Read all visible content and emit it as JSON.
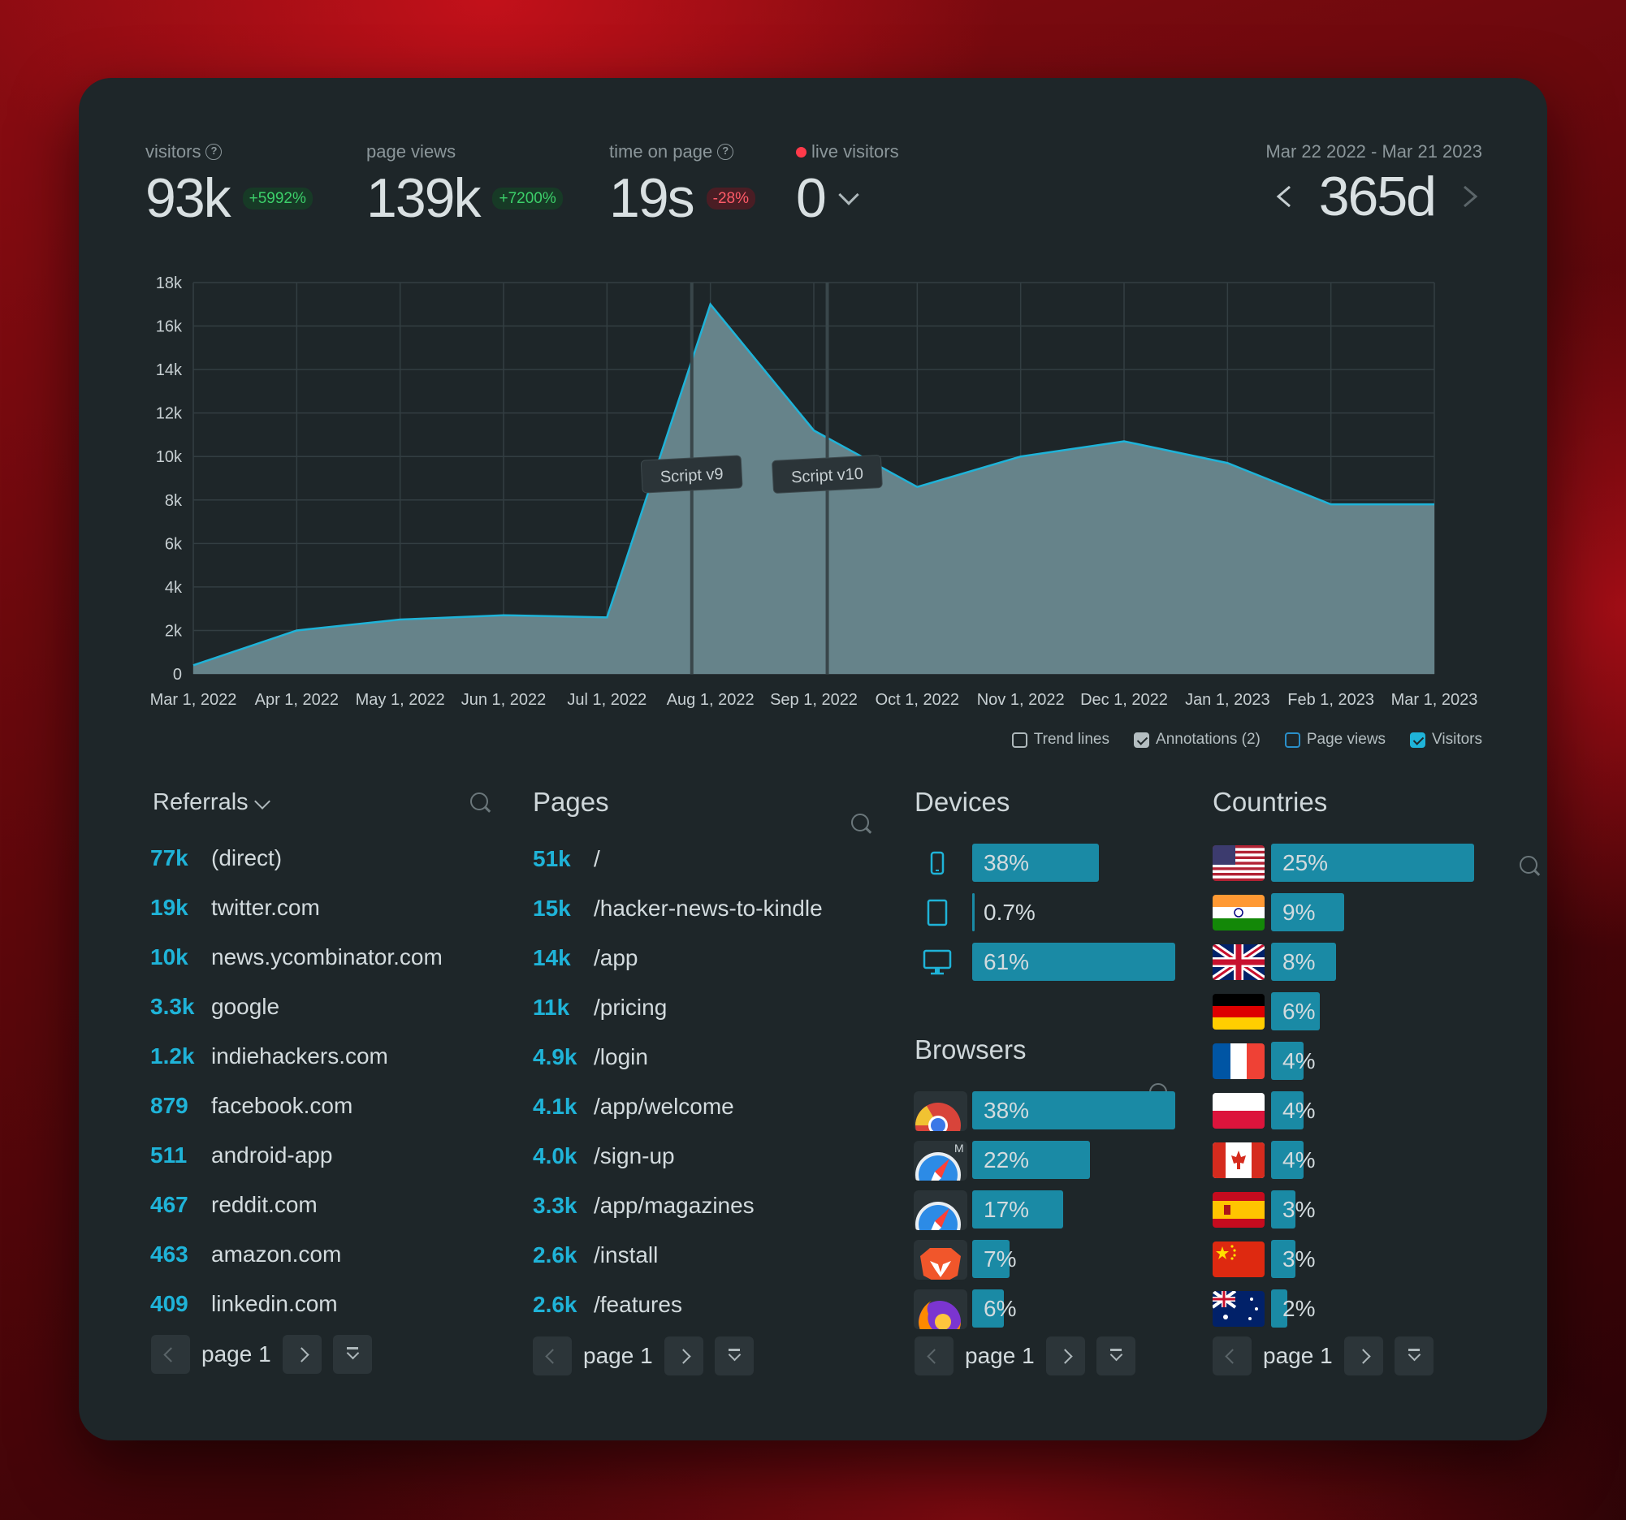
{
  "stats": {
    "visitors": {
      "label": "visitors",
      "value": "93k",
      "change": "+5992%"
    },
    "page_views": {
      "label": "page views",
      "value": "139k",
      "change": "+7200%"
    },
    "time_on_page": {
      "label": "time on page",
      "value": "19s",
      "change": "-28%"
    },
    "live": {
      "label": "live visitors",
      "value": "0"
    }
  },
  "range": {
    "dates": "Mar 22 2022 - Mar 21 2023",
    "value": "365d"
  },
  "chart_data": {
    "type": "area",
    "title": "",
    "xlabel": "",
    "ylabel": "",
    "x": [
      "Mar 1, 2022",
      "Apr 1, 2022",
      "May 1, 2022",
      "Jun 1, 2022",
      "Jul 1, 2022",
      "Aug 1, 2022",
      "Sep 1, 2022",
      "Oct 1, 2022",
      "Nov 1, 2022",
      "Dec 1, 2022",
      "Jan 1, 2023",
      "Feb 1, 2023",
      "Mar 1, 2023"
    ],
    "series": [
      {
        "name": "Visitors",
        "values": [
          400,
          2000,
          2500,
          2700,
          2600,
          17000,
          11200,
          8600,
          10000,
          10700,
          9700,
          7800,
          7800
        ]
      }
    ],
    "yticks": [
      "0",
      "2k",
      "4k",
      "6k",
      "8k",
      "10k",
      "12k",
      "14k",
      "16k",
      "18k"
    ],
    "ylim": [
      0,
      18000
    ],
    "annotations": [
      {
        "label": "Script v9",
        "x_index": 4.82
      },
      {
        "label": "Script v10",
        "x_index": 6.13
      }
    ],
    "grid": true
  },
  "legend": {
    "trend": "Trend lines",
    "annotations": "Annotations (2)",
    "page_views": "Page views",
    "visitors": "Visitors"
  },
  "referrals": {
    "title": "Referrals",
    "items": [
      {
        "num": "77k",
        "label": "(direct)"
      },
      {
        "num": "19k",
        "label": "twitter.com"
      },
      {
        "num": "10k",
        "label": "news.ycombinator.com"
      },
      {
        "num": "3.3k",
        "label": "google"
      },
      {
        "num": "1.2k",
        "label": "indiehackers.com"
      },
      {
        "num": "879",
        "label": "facebook.com"
      },
      {
        "num": "511",
        "label": "android-app"
      },
      {
        "num": "467",
        "label": "reddit.com"
      },
      {
        "num": "463",
        "label": "amazon.com"
      },
      {
        "num": "409",
        "label": "linkedin.com"
      }
    ],
    "page": "page 1"
  },
  "pages": {
    "title": "Pages",
    "items": [
      {
        "num": "51k",
        "label": "/"
      },
      {
        "num": "15k",
        "label": "/hacker-news-to-kindle"
      },
      {
        "num": "14k",
        "label": "/app"
      },
      {
        "num": "11k",
        "label": "/pricing"
      },
      {
        "num": "4.9k",
        "label": "/login"
      },
      {
        "num": "4.1k",
        "label": "/app/welcome"
      },
      {
        "num": "4.0k",
        "label": "/sign-up"
      },
      {
        "num": "3.3k",
        "label": "/app/magazines"
      },
      {
        "num": "2.6k",
        "label": "/install"
      },
      {
        "num": "2.6k",
        "label": "/features"
      }
    ],
    "page": "page 1"
  },
  "devices": {
    "title": "Devices",
    "items": [
      {
        "icon": "mobile-icon",
        "pct": "38%",
        "value": 38
      },
      {
        "icon": "tablet-icon",
        "pct": "0.7%",
        "value": 0.7
      },
      {
        "icon": "desktop-icon",
        "pct": "61%",
        "value": 61
      }
    ]
  },
  "browsers": {
    "title": "Browsers",
    "items": [
      {
        "icon": "chrome-icon",
        "pct": "38%",
        "value": 38
      },
      {
        "icon": "safari-mobile-icon",
        "pct": "22%",
        "value": 22
      },
      {
        "icon": "safari-icon",
        "pct": "17%",
        "value": 17
      },
      {
        "icon": "brave-icon",
        "pct": "7%",
        "value": 7
      },
      {
        "icon": "firefox-icon",
        "pct": "6%",
        "value": 6
      }
    ],
    "page": "page 1"
  },
  "countries": {
    "title": "Countries",
    "items": [
      {
        "flag": "us-flag-icon",
        "pct": "25%",
        "value": 25
      },
      {
        "flag": "india-flag-icon",
        "pct": "9%",
        "value": 9
      },
      {
        "flag": "uk-flag-icon",
        "pct": "8%",
        "value": 8
      },
      {
        "flag": "germany-flag-icon",
        "pct": "6%",
        "value": 6
      },
      {
        "flag": "france-flag-icon",
        "pct": "4%",
        "value": 4
      },
      {
        "flag": "poland-flag-icon",
        "pct": "4%",
        "value": 4
      },
      {
        "flag": "canada-flag-icon",
        "pct": "4%",
        "value": 4
      },
      {
        "flag": "spain-flag-icon",
        "pct": "3%",
        "value": 3
      },
      {
        "flag": "china-flag-icon",
        "pct": "3%",
        "value": 3
      },
      {
        "flag": "australia-flag-icon",
        "pct": "2%",
        "value": 2
      }
    ],
    "page": "page 1"
  },
  "colors": {
    "accent": "#1fb3d8",
    "bar": "#1a8aa5",
    "area": "#66838a",
    "panel": "#1e2629"
  }
}
